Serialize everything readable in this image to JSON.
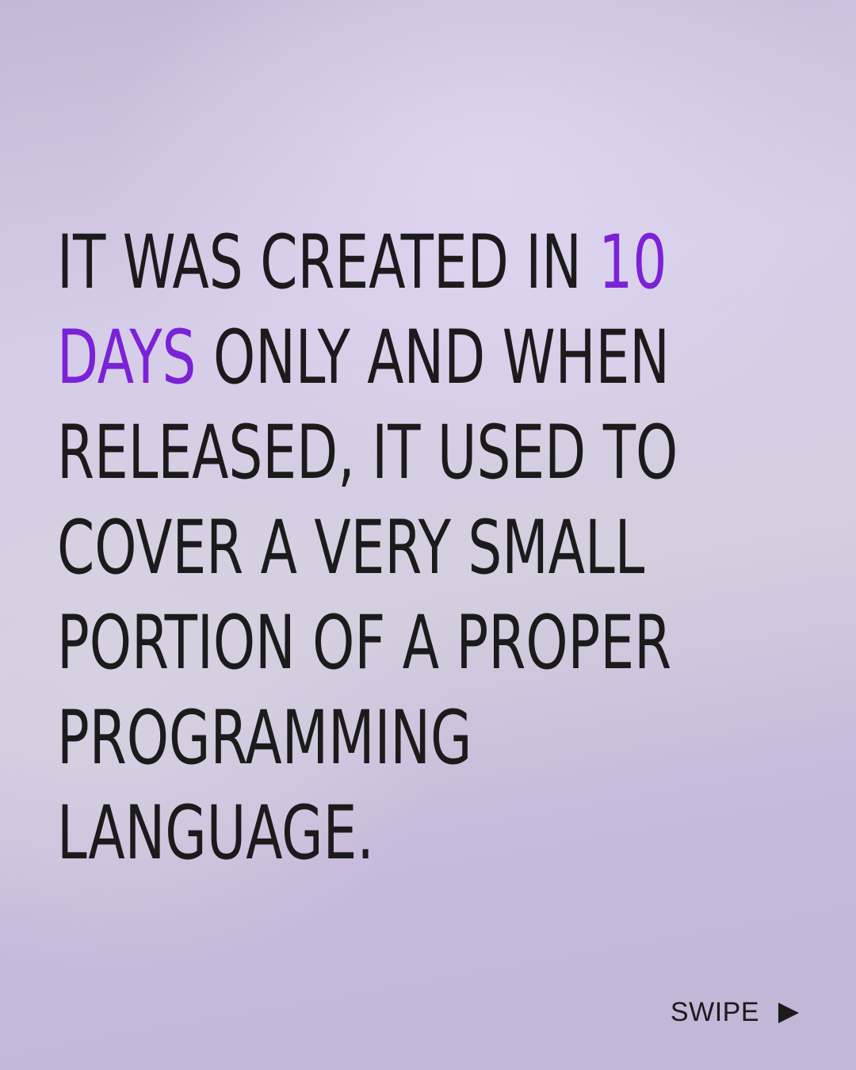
{
  "slide": {
    "lines": [
      {
        "before": "IT WAS CREATED IN ",
        "accent": "10",
        "after": ""
      },
      {
        "before": "",
        "accent": "DAYS",
        "after": " ONLY AND WHEN"
      },
      {
        "before": "RELEASED, IT USED TO",
        "accent": "",
        "after": ""
      },
      {
        "before": "COVER A VERY SMALL",
        "accent": "",
        "after": ""
      },
      {
        "before": "PORTION OF A PROPER",
        "accent": "",
        "after": ""
      },
      {
        "before": "PROGRAMMING",
        "accent": "",
        "after": ""
      },
      {
        "before": "LANGUAGE.",
        "accent": "",
        "after": ""
      }
    ],
    "accent_color": "#7b22d6",
    "text_color": "#1b1b1b"
  },
  "footer": {
    "swipe_label": "SWIPE",
    "swipe_icon": "play-arrow-icon"
  }
}
